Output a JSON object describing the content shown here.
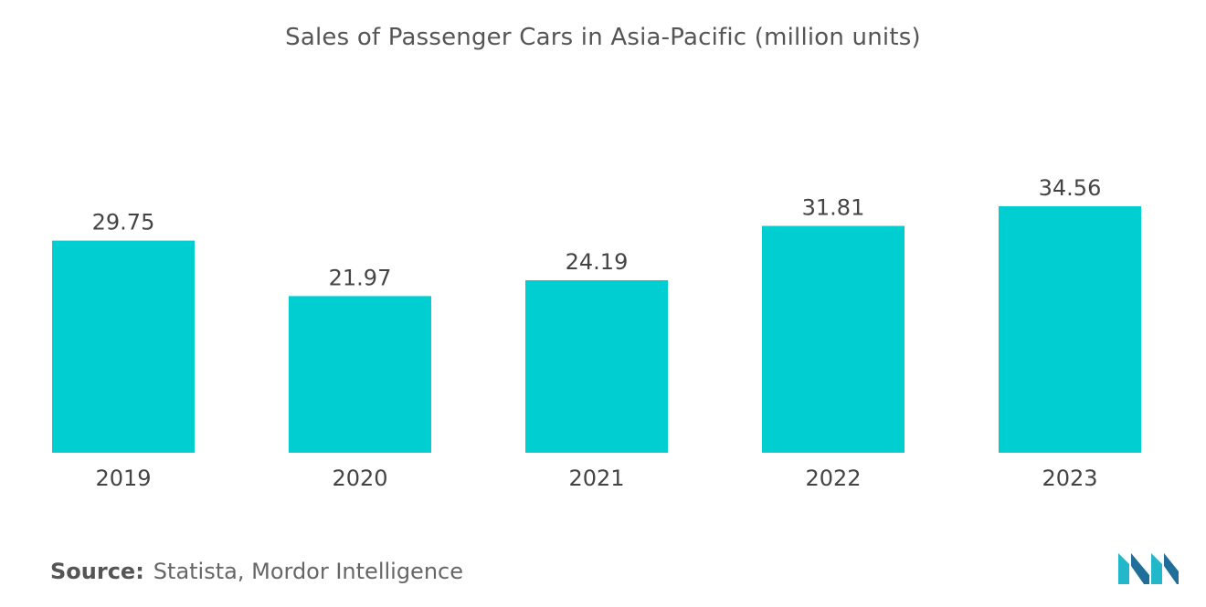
{
  "chart_data": {
    "type": "bar",
    "title": "Sales of Passenger Cars in Asia-Pacific (million units)",
    "categories": [
      "2019",
      "2020",
      "2021",
      "2022",
      "2023"
    ],
    "values": [
      29.75,
      21.97,
      24.19,
      31.81,
      34.56
    ],
    "data_labels": [
      "29.75",
      "21.97",
      "24.19",
      "31.81",
      "34.56"
    ],
    "xlabel": "",
    "ylabel": "",
    "ylim": [
      0,
      34.56
    ],
    "grid": false,
    "legend": "none",
    "bar_color": "#00CED1"
  },
  "source": {
    "label": "Source:",
    "text": "Statista, Mordor Intelligence"
  },
  "colors": {
    "bar": "#00CED1",
    "logo_dark": "#1f6f9a",
    "logo_light": "#22b7c9"
  },
  "logo": {
    "icon": "mordor-intelligence-logo"
  }
}
